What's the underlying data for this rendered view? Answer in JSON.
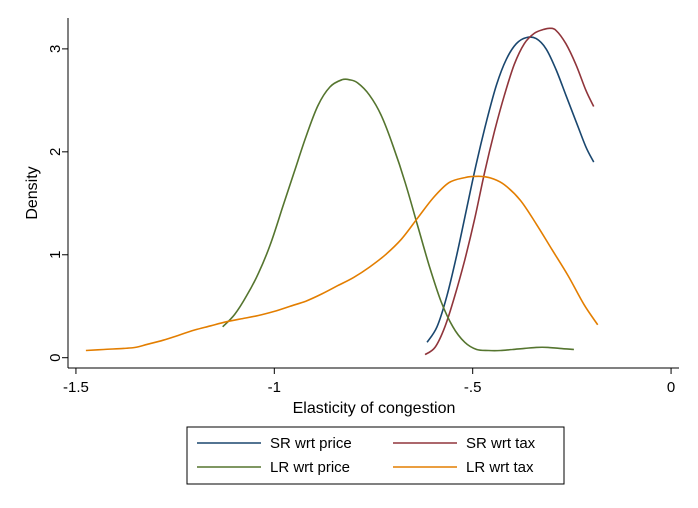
{
  "chart_data": {
    "type": "line",
    "title": "",
    "xlabel": "Elasticity of congestion",
    "ylabel": "Density",
    "xlim": [
      -1.52,
      0.02
    ],
    "ylim": [
      -0.1,
      3.3
    ],
    "xticks": [
      -1.5,
      -1,
      -0.5,
      0
    ],
    "xtick_labels": [
      "-1.5",
      "-1",
      "-.5",
      "0"
    ],
    "yticks": [
      0,
      1,
      2,
      3
    ],
    "ytick_labels": [
      "0",
      "1",
      "2",
      "3"
    ],
    "grid": false,
    "legend_position": "bottom",
    "series": [
      {
        "name": "SR wrt price",
        "color": "#1a476f",
        "x": [
          -0.615,
          -0.59,
          -0.565,
          -0.54,
          -0.515,
          -0.49,
          -0.465,
          -0.44,
          -0.415,
          -0.39,
          -0.365,
          -0.34,
          -0.315,
          -0.29,
          -0.265,
          -0.24,
          -0.215,
          -0.195
        ],
        "y": [
          0.15,
          0.3,
          0.6,
          1.0,
          1.45,
          1.9,
          2.3,
          2.65,
          2.9,
          3.05,
          3.11,
          3.1,
          3.0,
          2.8,
          2.55,
          2.3,
          2.05,
          1.9
        ]
      },
      {
        "name": "SR wrt tax",
        "color": "#90353b",
        "x": [
          -0.62,
          -0.595,
          -0.57,
          -0.545,
          -0.52,
          -0.495,
          -0.47,
          -0.445,
          -0.42,
          -0.395,
          -0.37,
          -0.345,
          -0.32,
          -0.305,
          -0.29,
          -0.265,
          -0.24,
          -0.215,
          -0.195
        ],
        "y": [
          0.03,
          0.1,
          0.3,
          0.6,
          0.95,
          1.35,
          1.8,
          2.2,
          2.55,
          2.85,
          3.05,
          3.15,
          3.19,
          3.2,
          3.18,
          3.05,
          2.85,
          2.6,
          2.44
        ]
      },
      {
        "name": "LR wrt price",
        "color": "#55752f",
        "x": [
          -1.13,
          -1.1,
          -1.07,
          -1.04,
          -1.01,
          -0.98,
          -0.95,
          -0.92,
          -0.89,
          -0.86,
          -0.83,
          -0.81,
          -0.79,
          -0.76,
          -0.73,
          -0.7,
          -0.67,
          -0.64,
          -0.61,
          -0.58,
          -0.55,
          -0.52,
          -0.49,
          -0.46,
          -0.43,
          -0.4,
          -0.37,
          -0.34,
          -0.31,
          -0.28,
          -0.245
        ],
        "y": [
          0.3,
          0.42,
          0.6,
          0.82,
          1.1,
          1.45,
          1.8,
          2.15,
          2.45,
          2.63,
          2.7,
          2.7,
          2.67,
          2.55,
          2.35,
          2.05,
          1.7,
          1.3,
          0.9,
          0.55,
          0.3,
          0.15,
          0.08,
          0.07,
          0.07,
          0.08,
          0.09,
          0.1,
          0.1,
          0.09,
          0.08
        ]
      },
      {
        "name": "LR wrt tax",
        "color": "#e37e00",
        "x": [
          -1.475,
          -1.43,
          -1.38,
          -1.35,
          -1.32,
          -1.28,
          -1.24,
          -1.2,
          -1.16,
          -1.12,
          -1.08,
          -1.04,
          -1.0,
          -0.96,
          -0.92,
          -0.88,
          -0.84,
          -0.8,
          -0.76,
          -0.72,
          -0.68,
          -0.64,
          -0.6,
          -0.56,
          -0.52,
          -0.5,
          -0.475,
          -0.45,
          -0.42,
          -0.38,
          -0.34,
          -0.3,
          -0.26,
          -0.22,
          -0.185
        ],
        "y": [
          0.07,
          0.08,
          0.09,
          0.1,
          0.13,
          0.17,
          0.22,
          0.27,
          0.31,
          0.35,
          0.38,
          0.41,
          0.45,
          0.5,
          0.55,
          0.62,
          0.7,
          0.78,
          0.88,
          1.0,
          1.15,
          1.35,
          1.55,
          1.7,
          1.75,
          1.76,
          1.76,
          1.74,
          1.68,
          1.53,
          1.3,
          1.05,
          0.8,
          0.52,
          0.32
        ]
      }
    ]
  }
}
